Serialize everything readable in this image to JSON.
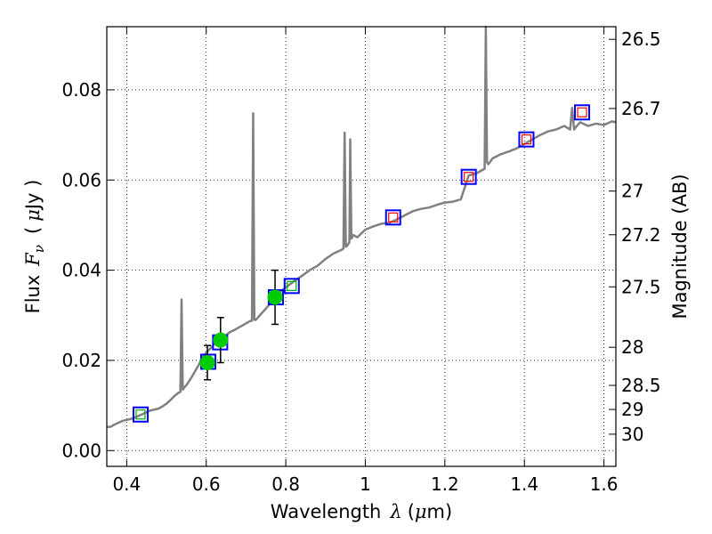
{
  "chart_data": {
    "type": "line",
    "xlabel": "Wavelength",
    "xlabel_symbol": "λ",
    "xlabel_unit_open": "(",
    "xlabel_unit_mu": "μ",
    "xlabel_unit_rest": "m)",
    "ylabel": "Flux",
    "ylabel_symbol": "F",
    "ylabel_subscript": "ν",
    "ylabel_unit_open": "(",
    "ylabel_unit_mu": "μ",
    "ylabel_unit_rest": "Jy )",
    "ylabel_right": "Magnitude (AB)",
    "xlim": [
      0.35,
      1.63
    ],
    "ylim": [
      -0.0035,
      0.094
    ],
    "grid": true,
    "x_ticks": [
      {
        "value": 0.4,
        "label": "0.4"
      },
      {
        "value": 0.6,
        "label": "0.6"
      },
      {
        "value": 0.8,
        "label": "0.8"
      },
      {
        "value": 1.0,
        "label": "1"
      },
      {
        "value": 1.2,
        "label": "1.2"
      },
      {
        "value": 1.4,
        "label": "1.4"
      },
      {
        "value": 1.6,
        "label": "1.6"
      }
    ],
    "y_ticks": [
      {
        "value": 0.0,
        "label": "0.00"
      },
      {
        "value": 0.02,
        "label": "0.02"
      },
      {
        "value": 0.04,
        "label": "0.04"
      },
      {
        "value": 0.06,
        "label": "0.06"
      },
      {
        "value": 0.08,
        "label": "0.08"
      }
    ],
    "right_ticks": [
      {
        "value": 26.5,
        "label": "26.5"
      },
      {
        "value": 26.7,
        "label": "26.7"
      },
      {
        "value": 27.0,
        "label": "27"
      },
      {
        "value": 27.2,
        "label": "27.2"
      },
      {
        "value": 27.5,
        "label": "27.5"
      },
      {
        "value": 28.0,
        "label": "28"
      },
      {
        "value": 28.5,
        "label": "28.5"
      },
      {
        "value": 29.0,
        "label": "29"
      },
      {
        "value": 30.0,
        "label": "30"
      }
    ],
    "series": [
      {
        "name": "model spectrum",
        "color": "#808080",
        "x": [
          0.35,
          0.36,
          0.37,
          0.38,
          0.39,
          0.4,
          0.41,
          0.42,
          0.43,
          0.44,
          0.45,
          0.46,
          0.47,
          0.48,
          0.49,
          0.5,
          0.51,
          0.52,
          0.53,
          0.535,
          0.538,
          0.541,
          0.545,
          0.55,
          0.56,
          0.57,
          0.58,
          0.59,
          0.6,
          0.61,
          0.62,
          0.63,
          0.64,
          0.65,
          0.66,
          0.67,
          0.68,
          0.69,
          0.7,
          0.71,
          0.715,
          0.718,
          0.721,
          0.725,
          0.73,
          0.74,
          0.75,
          0.76,
          0.77,
          0.78,
          0.79,
          0.8,
          0.82,
          0.84,
          0.86,
          0.88,
          0.9,
          0.92,
          0.94,
          0.945,
          0.948,
          0.951,
          0.955,
          0.96,
          0.962,
          0.965,
          0.97,
          0.98,
          1.0,
          1.02,
          1.04,
          1.06,
          1.08,
          1.1,
          1.12,
          1.14,
          1.16,
          1.18,
          1.2,
          1.22,
          1.24,
          1.26,
          1.28,
          1.29,
          1.3,
          1.303,
          1.306,
          1.309,
          1.312,
          1.32,
          1.34,
          1.36,
          1.38,
          1.4,
          1.42,
          1.44,
          1.46,
          1.48,
          1.5,
          1.515,
          1.52,
          1.525,
          1.53,
          1.54,
          1.56,
          1.58,
          1.6,
          1.62,
          1.63
        ],
        "y": [
          0.0052,
          0.0053,
          0.0058,
          0.0062,
          0.0066,
          0.0068,
          0.007,
          0.0073,
          0.0077,
          0.0081,
          0.0085,
          0.0089,
          0.0091,
          0.0093,
          0.0098,
          0.0104,
          0.0112,
          0.0121,
          0.0128,
          0.013,
          0.0335,
          0.0135,
          0.014,
          0.0145,
          0.0158,
          0.0173,
          0.0188,
          0.0206,
          0.0217,
          0.0226,
          0.0236,
          0.0243,
          0.0251,
          0.0256,
          0.0263,
          0.0267,
          0.0272,
          0.0277,
          0.0282,
          0.0287,
          0.0288,
          0.0748,
          0.029,
          0.029,
          0.0295,
          0.0305,
          0.0315,
          0.0325,
          0.0338,
          0.0346,
          0.0355,
          0.0362,
          0.0375,
          0.0387,
          0.04,
          0.041,
          0.0425,
          0.0437,
          0.0445,
          0.0448,
          0.0705,
          0.0452,
          0.0455,
          0.0462,
          0.069,
          0.047,
          0.0478,
          0.0473,
          0.049,
          0.0497,
          0.0503,
          0.0505,
          0.0513,
          0.0522,
          0.0531,
          0.0536,
          0.0539,
          0.0545,
          0.055,
          0.0552,
          0.0557,
          0.061,
          0.0615,
          0.062,
          0.0625,
          0.095,
          0.064,
          0.0635,
          0.0638,
          0.0648,
          0.0657,
          0.0663,
          0.067,
          0.068,
          0.069,
          0.07,
          0.0708,
          0.0712,
          0.072,
          0.0712,
          0.076,
          0.0712,
          0.0718,
          0.0728,
          0.072,
          0.0725,
          0.0722,
          0.073,
          0.0728
        ]
      },
      {
        "name": "blue squares",
        "color": "#0000ff",
        "x": [
          0.435,
          0.605,
          0.635,
          0.775,
          0.815,
          1.07,
          1.26,
          1.405,
          1.545
        ],
        "y": [
          0.008,
          0.0197,
          0.024,
          0.034,
          0.0365,
          0.0517,
          0.0607,
          0.069,
          0.075
        ]
      },
      {
        "name": "red squares",
        "color": "#ff0000",
        "x": [
          1.07,
          1.26,
          1.405,
          1.545
        ],
        "y": [
          0.0517,
          0.0607,
          0.069,
          0.075
        ]
      },
      {
        "name": "green squares",
        "color": "#00aa00",
        "x": [
          0.435,
          0.815
        ],
        "y": [
          0.008,
          0.0365
        ]
      },
      {
        "name": "observed photometry",
        "color": "#00cc00",
        "x": [
          0.603,
          0.636,
          0.773
        ],
        "y": [
          0.0195,
          0.0245,
          0.034
        ],
        "err": [
          0.0038,
          0.005,
          0.006
        ]
      }
    ]
  }
}
